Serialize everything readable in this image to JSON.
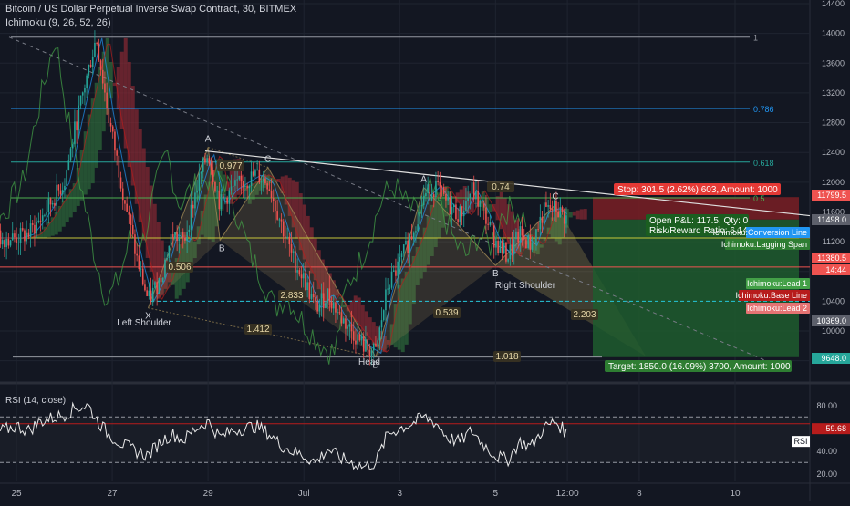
{
  "header": {
    "title": "Bitcoin / US Dollar Perpetual Inverse Swap Contract, 30, BITMEX",
    "indicator": "Ichimoku (9, 26, 52, 26)"
  },
  "colors": {
    "background": "#131722",
    "grid": "#1f2430",
    "up_candle": "#26a69a",
    "down_candle": "#ef5350",
    "kumo_bull": "#2e6b3a",
    "kumo_bear": "#8a2a33",
    "pattern_fill": "#a08a55",
    "profit_zone": "#1e5c2e",
    "loss_zone": "#7a1e24",
    "rsi_line": "#e8e8e8"
  },
  "chart_data": [
    {
      "type": "line",
      "name": "price",
      "ylim": [
        9400,
        14400
      ],
      "x_ticks": [
        "25",
        "27",
        "29",
        "Jul",
        "3",
        "5",
        "12:00",
        "8",
        "10"
      ],
      "y_ticks": [
        14400,
        14000,
        13600,
        13200,
        12800,
        12400,
        12000,
        11600,
        11200,
        10800,
        10400,
        10000,
        9600
      ],
      "price_labels": [
        {
          "text": "11799.5",
          "color": "#ef5350"
        },
        {
          "text": "11498.0",
          "color": "#5d606b"
        },
        {
          "text": "11380.5",
          "color": "#ef5350"
        },
        {
          "text": "14:44",
          "color": "#ef5350"
        },
        {
          "text": "10369.0",
          "color": "#5d606b"
        },
        {
          "text": "9648.0",
          "color": "#26a69a"
        }
      ],
      "fib_levels": [
        {
          "label": "1",
          "price": 13950
        },
        {
          "label": "0.786",
          "price": 12990
        },
        {
          "label": "0.618",
          "price": 12270
        },
        {
          "label": "0.5",
          "price": 11790
        }
      ],
      "pattern_points": [
        {
          "label": "X",
          "x": "Jun 27 18:00",
          "price": 10310
        },
        {
          "label": "A",
          "x": "Jun 29 00:00",
          "price": 12470
        },
        {
          "label": "B",
          "x": "Jun 29 06:00",
          "price": 11220
        },
        {
          "label": "C",
          "x": "Jun 30 06:00",
          "price": 12200
        },
        {
          "label": "D",
          "x": "Jul 2 12:00",
          "price": 9650
        },
        {
          "label": "A",
          "x": "Jul 3 12:00",
          "price": 11930
        },
        {
          "label": "B",
          "x": "Jul 5 00:00",
          "price": 10880
        },
        {
          "label": "C",
          "x": "Jul 6 06:00",
          "price": 11700
        }
      ],
      "ratios": [
        "0.977",
        "0.506",
        "2.833",
        "1.412",
        "0.539",
        "0.74",
        "2.203",
        "1.018"
      ],
      "pattern_labels": [
        "Left Shoulder",
        "Head",
        "Right Shoulder"
      ],
      "ichimoku_labels": [
        "Ichimoku:Conversion Line",
        "Ichimoku:Lagging Span",
        "Ichimoku:Lead 1",
        "Ichimoku:Base Line",
        "Ichimoku:Lead 2"
      ],
      "position": {
        "stop_text": "Stop: 301.5 (2.62%) 603, Amount: 1000",
        "pnl_text": "Open P&L: 117.5, Qty: 0",
        "rr_text": "Risk/Reward Ratio: 6.14",
        "target_text": "Target: 1850.0 (16.09%) 3700, Amount: 1000",
        "entry": 11498,
        "stop": 11799.5,
        "target": 9648
      },
      "series_price": [
        [
          "Jun 24 12:00",
          11250
        ],
        [
          "Jun 25 00:00",
          11250
        ],
        [
          "Jun 25 06:00",
          11300
        ],
        [
          "Jun 25 12:00",
          11500
        ],
        [
          "Jun 26 00:00",
          12000
        ],
        [
          "Jun 26 06:00",
          12800
        ],
        [
          "Jun 26 12:00",
          13500
        ],
        [
          "Jun 26 16:00",
          13950
        ],
        [
          "Jun 26 22:00",
          12900
        ],
        [
          "Jun 27 06:00",
          11800
        ],
        [
          "Jun 27 12:00",
          11000
        ],
        [
          "Jun 27 18:00",
          10400
        ],
        [
          "Jun 28 00:00",
          10700
        ],
        [
          "Jun 28 06:00",
          11300
        ],
        [
          "Jun 28 12:00",
          11200
        ],
        [
          "Jun 28 18:00",
          11900
        ],
        [
          "Jun 29 00:00",
          12400
        ],
        [
          "Jun 29 06:00",
          11700
        ],
        [
          "Jun 29 12:00",
          11900
        ],
        [
          "Jun 30 00:00",
          12100
        ],
        [
          "Jun 30 06:00",
          12000
        ],
        [
          "Jun 30 12:00",
          11500
        ],
        [
          "Jun 30 18:00",
          11000
        ],
        [
          "Jul 1 00:00",
          10700
        ],
        [
          "Jul 1 06:00",
          10300
        ],
        [
          "Jul 1 12:00",
          10500
        ],
        [
          "Jul 1 18:00",
          10200
        ],
        [
          "Jul 2 00:00",
          10000
        ],
        [
          "Jul 2 06:00",
          9800
        ],
        [
          "Jul 2 12:00",
          9700
        ],
        [
          "Jul 2 18:00",
          10600
        ],
        [
          "Jul 3 00:00",
          10900
        ],
        [
          "Jul 3 06:00",
          11300
        ],
        [
          "Jul 3 12:00",
          11800
        ],
        [
          "Jul 3 18:00",
          11950
        ],
        [
          "Jul 4 00:00",
          11700
        ],
        [
          "Jul 4 06:00",
          11550
        ],
        [
          "Jul 4 12:00",
          11900
        ],
        [
          "Jul 4 18:00",
          11600
        ],
        [
          "Jul 5 00:00",
          11200
        ],
        [
          "Jul 5 06:00",
          11000
        ],
        [
          "Jul 5 12:00",
          11300
        ],
        [
          "Jul 5 18:00",
          11150
        ],
        [
          "Jul 6 00:00",
          11600
        ],
        [
          "Jul 6 06:00",
          11650
        ],
        [
          "Jul 6 12:00",
          11500
        ]
      ]
    },
    {
      "type": "line",
      "name": "RSI",
      "title": "RSI (14, close)",
      "ylim": [
        15,
        95
      ],
      "y_ticks": [
        80,
        60,
        40,
        20
      ],
      "bands": [
        70,
        30
      ],
      "current_label": "59.68",
      "series_rsi": [
        [
          "Jun 24 12:00",
          55
        ],
        [
          "Jun 25 00:00",
          62
        ],
        [
          "Jun 25 06:00",
          58
        ],
        [
          "Jun 25 12:00",
          66
        ],
        [
          "Jun 26 00:00",
          72
        ],
        [
          "Jun 26 06:00",
          78
        ],
        [
          "Jun 26 12:00",
          80
        ],
        [
          "Jun 26 16:00",
          68
        ],
        [
          "Jun 26 22:00",
          55
        ],
        [
          "Jun 27 06:00",
          45
        ],
        [
          "Jun 27 12:00",
          40
        ],
        [
          "Jun 27 18:00",
          36
        ],
        [
          "Jun 28 00:00",
          48
        ],
        [
          "Jun 28 06:00",
          55
        ],
        [
          "Jun 28 12:00",
          50
        ],
        [
          "Jun 28 18:00",
          60
        ],
        [
          "Jun 29 00:00",
          66
        ],
        [
          "Jun 29 06:00",
          52
        ],
        [
          "Jun 29 12:00",
          58
        ],
        [
          "Jun 30 00:00",
          62
        ],
        [
          "Jun 30 06:00",
          56
        ],
        [
          "Jun 30 12:00",
          46
        ],
        [
          "Jun 30 18:00",
          40
        ],
        [
          "Jul 1 00:00",
          36
        ],
        [
          "Jul 1 06:00",
          30
        ],
        [
          "Jul 1 12:00",
          42
        ],
        [
          "Jul 1 18:00",
          34
        ],
        [
          "Jul 2 00:00",
          30
        ],
        [
          "Jul 2 06:00",
          26
        ],
        [
          "Jul 2 12:00",
          30
        ],
        [
          "Jul 2 18:00",
          55
        ],
        [
          "Jul 3 00:00",
          60
        ],
        [
          "Jul 3 06:00",
          64
        ],
        [
          "Jul 3 12:00",
          70
        ],
        [
          "Jul 3 18:00",
          65
        ],
        [
          "Jul 4 00:00",
          52
        ],
        [
          "Jul 4 06:00",
          48
        ],
        [
          "Jul 4 12:00",
          58
        ],
        [
          "Jul 4 18:00",
          46
        ],
        [
          "Jul 5 00:00",
          36
        ],
        [
          "Jul 5 06:00",
          32
        ],
        [
          "Jul 5 12:00",
          48
        ],
        [
          "Jul 5 18:00",
          44
        ],
        [
          "Jul 6 00:00",
          60
        ],
        [
          "Jul 6 06:00",
          66
        ],
        [
          "Jul 6 12:00",
          55
        ]
      ]
    }
  ]
}
